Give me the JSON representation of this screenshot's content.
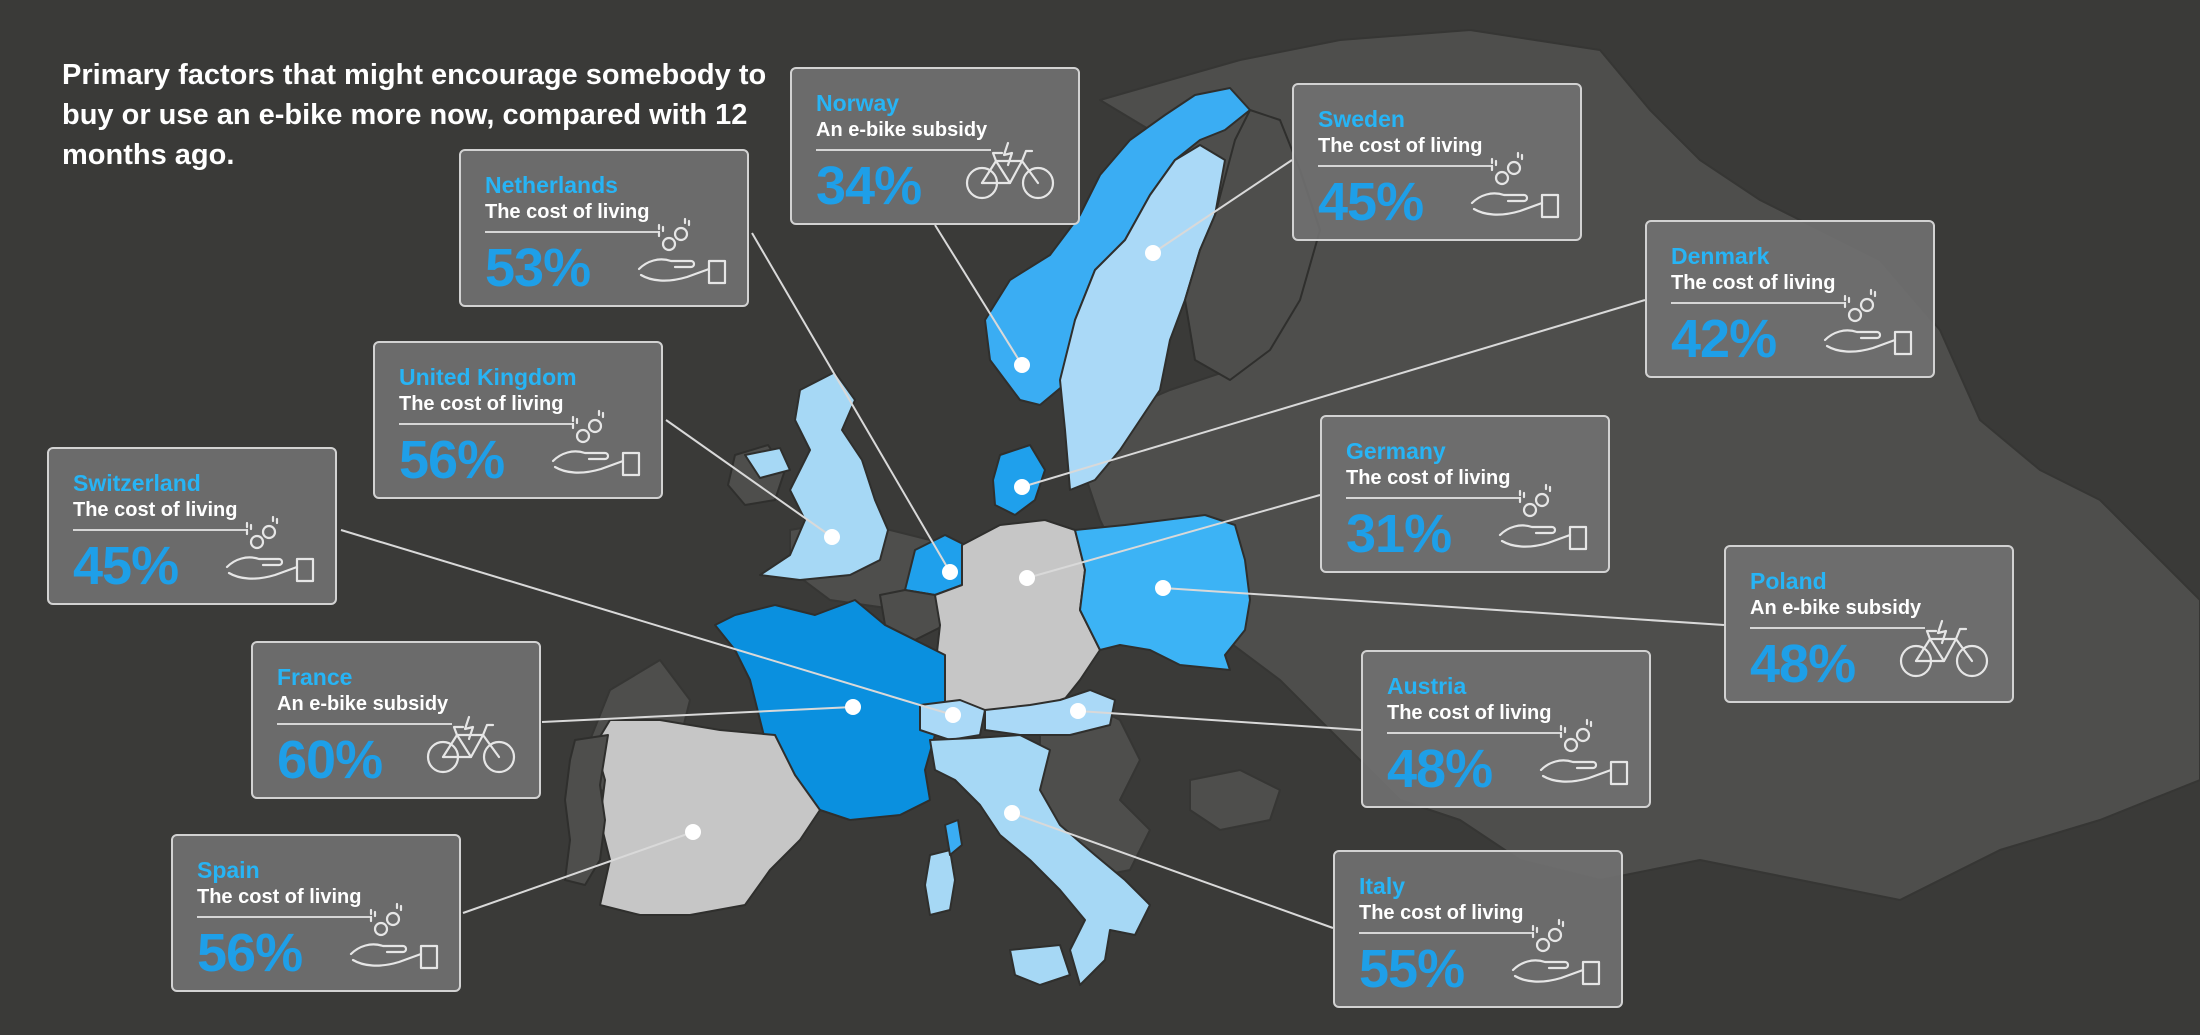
{
  "title": "Primary factors that might encourage somebody to buy or use an e-bike more now, compared with 12 months ago.",
  "colors": {
    "background": "#3a3a38",
    "land_other": "#4e4e4c",
    "border": "#2e2e2c",
    "country_label": "#27b4f5",
    "percent": "#1e9fe8",
    "card_bg": "#707070",
    "tier_60": "#0a90df",
    "tier_56": "#a6d8f5",
    "tier_53": "#1fa0ec",
    "tier_48": "#3cb3f5",
    "tier_45": "#aad9f7",
    "tier_34": "#3aadf3",
    "tier_31": "#c6c6c6"
  },
  "cards": [
    {
      "key": "norway",
      "country": "Norway",
      "factor": "An e-bike subsidy",
      "percent": "34%",
      "icon": "bicycle-icon"
    },
    {
      "key": "sweden",
      "country": "Sweden",
      "factor": "The cost of living",
      "percent": "45%",
      "icon": "coins-hand-icon"
    },
    {
      "key": "netherlands",
      "country": "Netherlands",
      "factor": "The cost of living",
      "percent": "53%",
      "icon": "coins-hand-icon"
    },
    {
      "key": "denmark",
      "country": "Denmark",
      "factor": "The cost of living",
      "percent": "42%",
      "icon": "coins-hand-icon"
    },
    {
      "key": "united-kingdom",
      "country": "United Kingdom",
      "factor": "The cost of living",
      "percent": "56%",
      "icon": "coins-hand-icon"
    },
    {
      "key": "germany",
      "country": "Germany",
      "factor": "The cost of living",
      "percent": "31%",
      "icon": "coins-hand-icon"
    },
    {
      "key": "switzerland",
      "country": "Switzerland",
      "factor": "The cost of living",
      "percent": "45%",
      "icon": "coins-hand-icon"
    },
    {
      "key": "poland",
      "country": "Poland",
      "factor": "An e-bike subsidy",
      "percent": "48%",
      "icon": "bicycle-icon"
    },
    {
      "key": "france",
      "country": "France",
      "factor": "An e-bike subsidy",
      "percent": "60%",
      "icon": "bicycle-icon"
    },
    {
      "key": "austria",
      "country": "Austria",
      "factor": "The cost of living",
      "percent": "48%",
      "icon": "coins-hand-icon"
    },
    {
      "key": "spain",
      "country": "Spain",
      "factor": "The cost of living",
      "percent": "56%",
      "icon": "coins-hand-icon"
    },
    {
      "key": "italy",
      "country": "Italy",
      "factor": "The cost of living",
      "percent": "55%",
      "icon": "coins-hand-icon"
    }
  ]
}
